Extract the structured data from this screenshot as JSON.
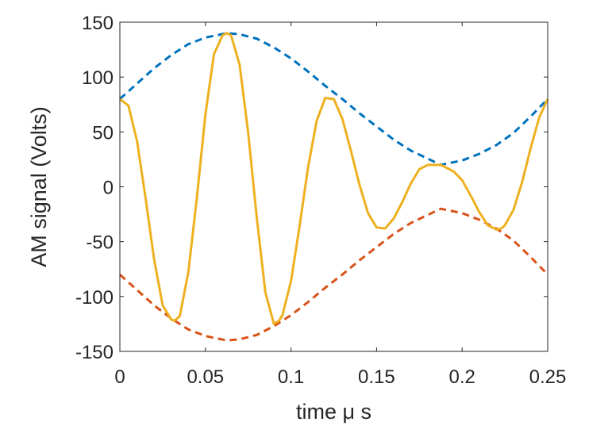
{
  "chart_data": {
    "type": "line",
    "xlabel": "time μ s",
    "ylabel": "AM signal (Volts)",
    "xlim": [
      0,
      0.25
    ],
    "ylim": [
      -150,
      150
    ],
    "xticks": [
      "0",
      "0.05",
      "0.1",
      "0.15",
      "0.2",
      "0.25"
    ],
    "yticks": [
      "150",
      "100",
      "50",
      "0",
      "-50",
      "-100",
      "-150"
    ],
    "grid": false,
    "legend": "none",
    "series": [
      {
        "color": "#0072BD",
        "style": "dashed",
        "x": [
          0,
          0.01,
          0.02,
          0.03,
          0.04,
          0.05,
          0.0625,
          0.07,
          0.08,
          0.09,
          0.1,
          0.11,
          0.12,
          0.125,
          0.13,
          0.14,
          0.15,
          0.16,
          0.17,
          0.1875,
          0.2,
          0.21,
          0.22,
          0.23,
          0.24,
          0.25
        ],
        "values": [
          80,
          94,
          108,
          120,
          130,
          136,
          140,
          139,
          135,
          127,
          117,
          105,
          92,
          86,
          80,
          67,
          55,
          43,
          33,
          20,
          24,
          30,
          38,
          49,
          64,
          80
        ]
      },
      {
        "color": "#D95319",
        "style": "dashed",
        "x": [
          0,
          0.01,
          0.02,
          0.03,
          0.04,
          0.05,
          0.0625,
          0.07,
          0.08,
          0.09,
          0.1,
          0.11,
          0.12,
          0.125,
          0.13,
          0.14,
          0.15,
          0.16,
          0.17,
          0.1875,
          0.2,
          0.21,
          0.22,
          0.23,
          0.24,
          0.25
        ],
        "values": [
          -80,
          -94,
          -108,
          -120,
          -130,
          -136,
          -140,
          -139,
          -135,
          -127,
          -117,
          -105,
          -92,
          -86,
          -80,
          -67,
          -55,
          -43,
          -33,
          -20,
          -24,
          -30,
          -38,
          -49,
          -64,
          -80
        ]
      },
      {
        "color": "#EDB120",
        "style": "solid",
        "x": [
          0,
          0.005,
          0.01,
          0.015,
          0.02,
          0.025,
          0.03,
          0.032,
          0.035,
          0.04,
          0.045,
          0.05,
          0.055,
          0.06,
          0.0625,
          0.065,
          0.07,
          0.075,
          0.08,
          0.085,
          0.09,
          0.093,
          0.095,
          0.1,
          0.105,
          0.11,
          0.115,
          0.12,
          0.125,
          0.13,
          0.135,
          0.14,
          0.145,
          0.15,
          0.155,
          0.16,
          0.165,
          0.17,
          0.175,
          0.18,
          0.1875,
          0.195,
          0.2,
          0.205,
          0.21,
          0.215,
          0.22,
          0.223,
          0.225,
          0.23,
          0.235,
          0.24,
          0.245,
          0.25
        ],
        "values": [
          80,
          74,
          42,
          -10,
          -66,
          -108,
          -121,
          -122,
          -118,
          -78,
          -10,
          66,
          121,
          138,
          140,
          138,
          111,
          49,
          -28,
          -96,
          -125,
          -122,
          -117,
          -86,
          -36,
          18,
          60,
          81,
          80,
          62,
          33,
          2,
          -24,
          -37,
          -38,
          -29,
          -14,
          3,
          16,
          20,
          20,
          14,
          6,
          -8,
          -23,
          -35,
          -39,
          -38,
          -35,
          -21,
          4,
          35,
          63,
          80
        ]
      }
    ]
  }
}
